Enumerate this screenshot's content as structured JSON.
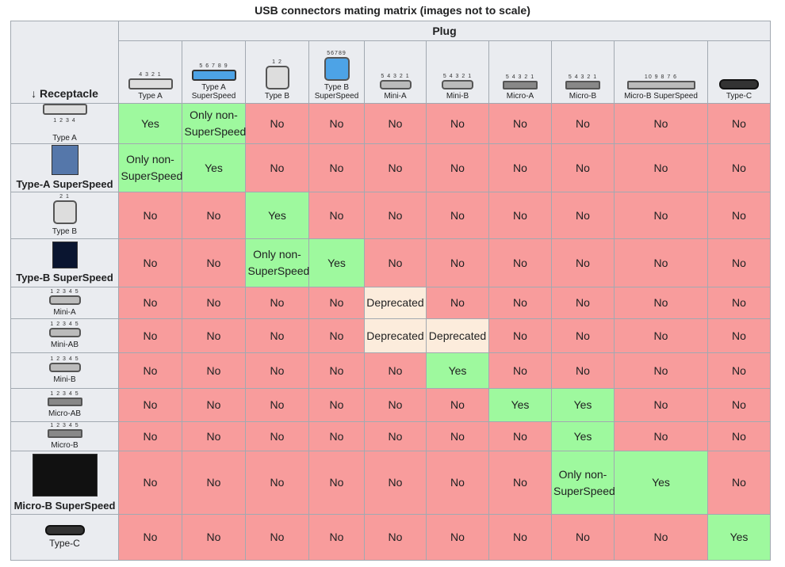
{
  "caption": "USB connectors mating matrix (images not to scale)",
  "header": {
    "plug": "Plug",
    "receptacle": "↓ Receptacle",
    "plugs": [
      {
        "label": "Type A",
        "pins": "4 3 2 1"
      },
      {
        "label": "Type A SuperSpeed",
        "pins": "5 6 7 8 9"
      },
      {
        "label": "Type B",
        "pins": "1 2"
      },
      {
        "label": "Type B SuperSpeed",
        "pins": "56789"
      },
      {
        "label": "Mini-A",
        "pins": "5 4 3 2 1"
      },
      {
        "label": "Mini-B",
        "pins": "5 4 3 2 1"
      },
      {
        "label": "Micro-A",
        "pins": "5 4 3 2 1"
      },
      {
        "label": "Micro-B",
        "pins": "5 4 3 2 1"
      },
      {
        "label": "Micro-B SuperSpeed",
        "pins": "10 9 8 7 6"
      },
      {
        "label": "Type-C",
        "pins": ""
      }
    ]
  },
  "rows": [
    {
      "label": "Type A",
      "pins": "1 2 3 4",
      "bold": false,
      "cells": [
        "Yes",
        "Only non-SuperSpeed",
        "No",
        "No",
        "No",
        "No",
        "No",
        "No",
        "No",
        "No"
      ]
    },
    {
      "label": "Type-A SuperSpeed",
      "pins": "",
      "bold": true,
      "cells": [
        "Only non-SuperSpeed",
        "Yes",
        "No",
        "No",
        "No",
        "No",
        "No",
        "No",
        "No",
        "No"
      ]
    },
    {
      "label": "Type B",
      "pins": "2 1",
      "bold": false,
      "cells": [
        "No",
        "No",
        "Yes",
        "No",
        "No",
        "No",
        "No",
        "No",
        "No",
        "No"
      ]
    },
    {
      "label": "Type-B SuperSpeed",
      "pins": "",
      "bold": true,
      "cells": [
        "No",
        "No",
        "Only non-SuperSpeed",
        "Yes",
        "No",
        "No",
        "No",
        "No",
        "No",
        "No"
      ]
    },
    {
      "label": "Mini-A",
      "pins": "1 2 3 4 5",
      "bold": false,
      "cells": [
        "No",
        "No",
        "No",
        "No",
        "Deprecated",
        "No",
        "No",
        "No",
        "No",
        "No"
      ]
    },
    {
      "label": "Mini-AB",
      "pins": "1 2 3 4 5",
      "bold": false,
      "cells": [
        "No",
        "No",
        "No",
        "No",
        "Deprecated",
        "Deprecated",
        "No",
        "No",
        "No",
        "No"
      ]
    },
    {
      "label": "Mini-B",
      "pins": "1 2 3 4 5",
      "bold": false,
      "cells": [
        "No",
        "No",
        "No",
        "No",
        "No",
        "Yes",
        "No",
        "No",
        "No",
        "No"
      ]
    },
    {
      "label": "Micro-AB",
      "pins": "1 2 3 4 5",
      "bold": false,
      "cells": [
        "No",
        "No",
        "No",
        "No",
        "No",
        "No",
        "Yes",
        "Yes",
        "No",
        "No"
      ]
    },
    {
      "label": "Micro-B",
      "pins": "1 2 3 4 5",
      "bold": false,
      "cells": [
        "No",
        "No",
        "No",
        "No",
        "No",
        "No",
        "No",
        "Yes",
        "No",
        "No"
      ]
    },
    {
      "label": "Micro-B SuperSpeed",
      "pins": "",
      "bold": true,
      "cells": [
        "No",
        "No",
        "No",
        "No",
        "No",
        "No",
        "No",
        "Only non-SuperSpeed",
        "Yes",
        "No"
      ]
    },
    {
      "label": "Type-C",
      "pins": "",
      "bold": false,
      "cells": [
        "No",
        "No",
        "No",
        "No",
        "No",
        "No",
        "No",
        "No",
        "No",
        "Yes"
      ]
    }
  ],
  "colors": {
    "yes": "#9ef99e",
    "no": "#f89c9c",
    "deprecated": "#fcecdc",
    "header": "#eaecf0"
  }
}
